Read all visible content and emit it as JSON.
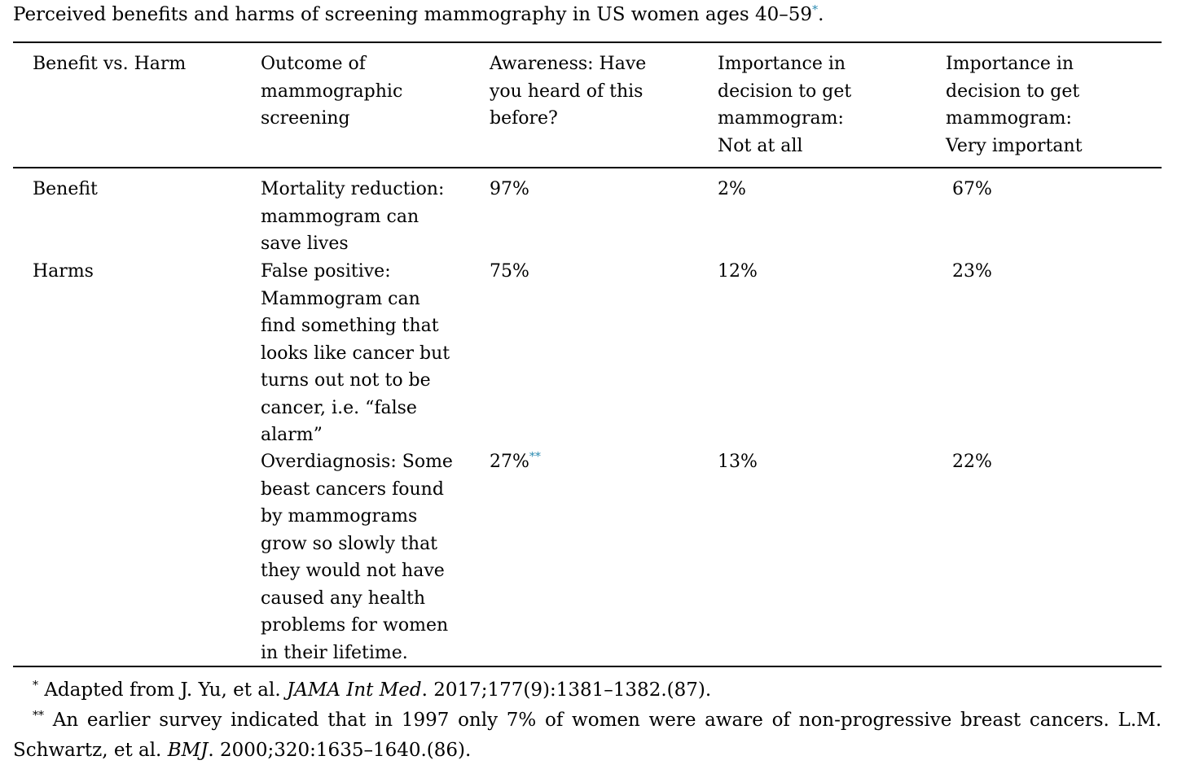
{
  "caption": {
    "text": "Perceived benefits and harms of screening mammography in US women ages 40–59",
    "mark": "*",
    "end": "."
  },
  "headers": [
    "Benefit vs. Harm",
    "Outcome of\nmammographic\nscreening",
    "Awareness: Have\nyou heard of this\nbefore?",
    "Importance in\ndecision to get\nmammogram:\nNot at all",
    "Importance in\ndecision to get\nmammogram:\nVery important"
  ],
  "rows": [
    {
      "type": "Benefit",
      "outcome": "Mortality reduction:\nmammogram can\nsave lives",
      "awareness": "97%",
      "awareness_mark": "",
      "not_at_all": "2%",
      "very_important": "67%"
    },
    {
      "type": "Harms",
      "outcome": "False positive:\nMammogram can\nfind something that\nlooks like cancer but\nturns out not to be\ncancer, i.e. “false\nalarm”",
      "awareness": "75%",
      "awareness_mark": "",
      "not_at_all": "12%",
      "very_important": "23%"
    },
    {
      "type": "",
      "outcome": "Overdiagnosis: Some\nbeast cancers found\nby mammograms\ngrow so slowly that\nthey would not have\ncaused any health\nproblems for women\nin their lifetime.",
      "awareness": "27%",
      "awareness_mark": "**",
      "not_at_all": "13%",
      "very_important": "22%"
    }
  ],
  "footnotes": [
    {
      "mark": "*",
      "before": "Adapted from J. Yu, et al. ",
      "journal": "JAMA Int Med",
      "after": ". 2017;177(9):1381–1382.(87)."
    },
    {
      "mark": "**",
      "before": "An earlier survey indicated that in 1997 only 7% of women were aware of non-progressive breast cancers. L.M. Schwartz, et al. ",
      "journal": "BMJ",
      "after": ". 2000;320:1635–1640.(86)."
    }
  ],
  "colors": {
    "link": "#2a8ab0",
    "text": "#000000",
    "rule": "#000000"
  }
}
